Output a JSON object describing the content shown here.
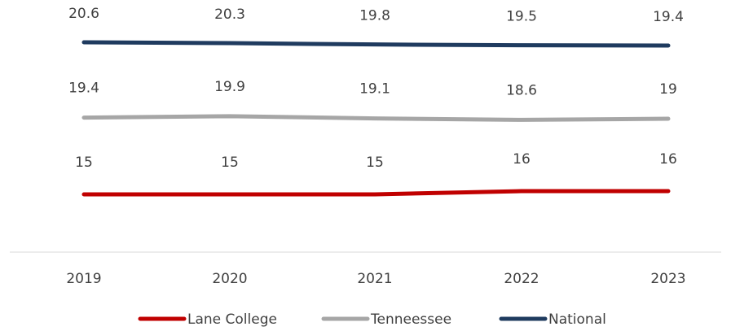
{
  "chart_data": {
    "type": "line",
    "title": "",
    "xlabel": "",
    "ylabel": "",
    "categories": [
      "2019",
      "2020",
      "2021",
      "2022",
      "2023"
    ],
    "series": [
      {
        "name": "Lane College",
        "values": [
          15,
          15,
          15,
          16,
          16
        ],
        "labels": [
          "15",
          "15",
          "15",
          "16",
          "16"
        ],
        "color": "#c00000"
      },
      {
        "name": "Tenneessee",
        "values": [
          19.4,
          19.9,
          19.1,
          18.6,
          19.0
        ],
        "labels": [
          "19.4",
          "19.9",
          "19.1",
          "18.6",
          "19"
        ],
        "color": "#a6a6a6"
      },
      {
        "name": "National",
        "values": [
          20.6,
          20.3,
          19.8,
          19.5,
          19.4
        ],
        "labels": [
          "20.6",
          "20.3",
          "19.8",
          "19.5",
          "19.4"
        ],
        "color": "#1f3b5f"
      }
    ],
    "grid": false,
    "legend_position": "bottom"
  }
}
